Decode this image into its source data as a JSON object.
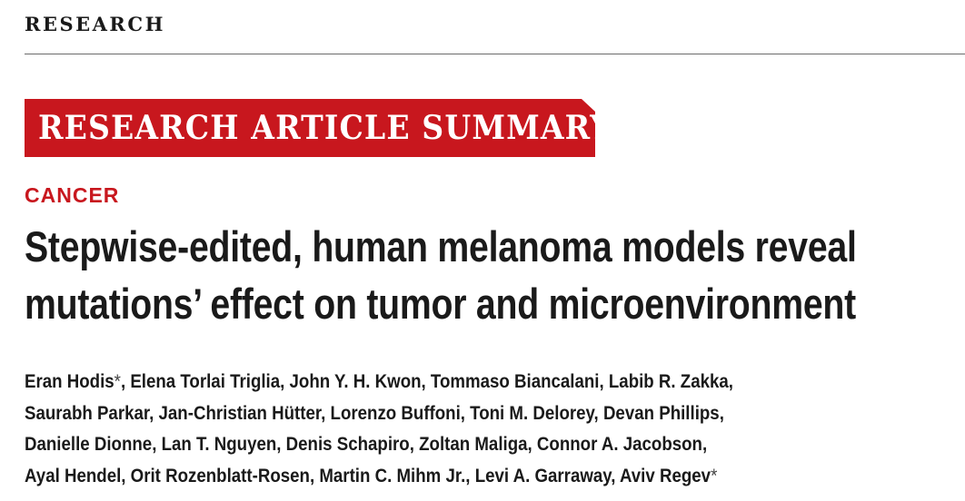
{
  "header": {
    "section": "RESEARCH"
  },
  "banner": {
    "text": "RESEARCH ARTICLE SUMMARY",
    "color": "#c8171e"
  },
  "category": "CANCER",
  "title": {
    "line1": "Stepwise-edited, human melanoma models reveal",
    "line2": "mutations’ effect on tumor and microenvironment"
  },
  "authors": {
    "line1_a": "Eran Hodis",
    "line1_star": "*",
    "line1_b": ", Elena Torlai Triglia, John Y. H. Kwon, Tommaso Biancalani, Labib R. Zakka,",
    "line2": "Saurabh Parkar, Jan-Christian Hütter, Lorenzo Buffoni, Toni M. Delorey, Devan Phillips,",
    "line3": "Danielle Dionne, Lan T. Nguyen, Denis Schapiro, Zoltan Maliga, Connor A. Jacobson,",
    "line4_a": "Ayal Hendel, Orit Rozenblatt-Rosen, Martin C. Mihm Jr., Levi A. Garraway, Aviv Regev",
    "line4_star": "*"
  }
}
